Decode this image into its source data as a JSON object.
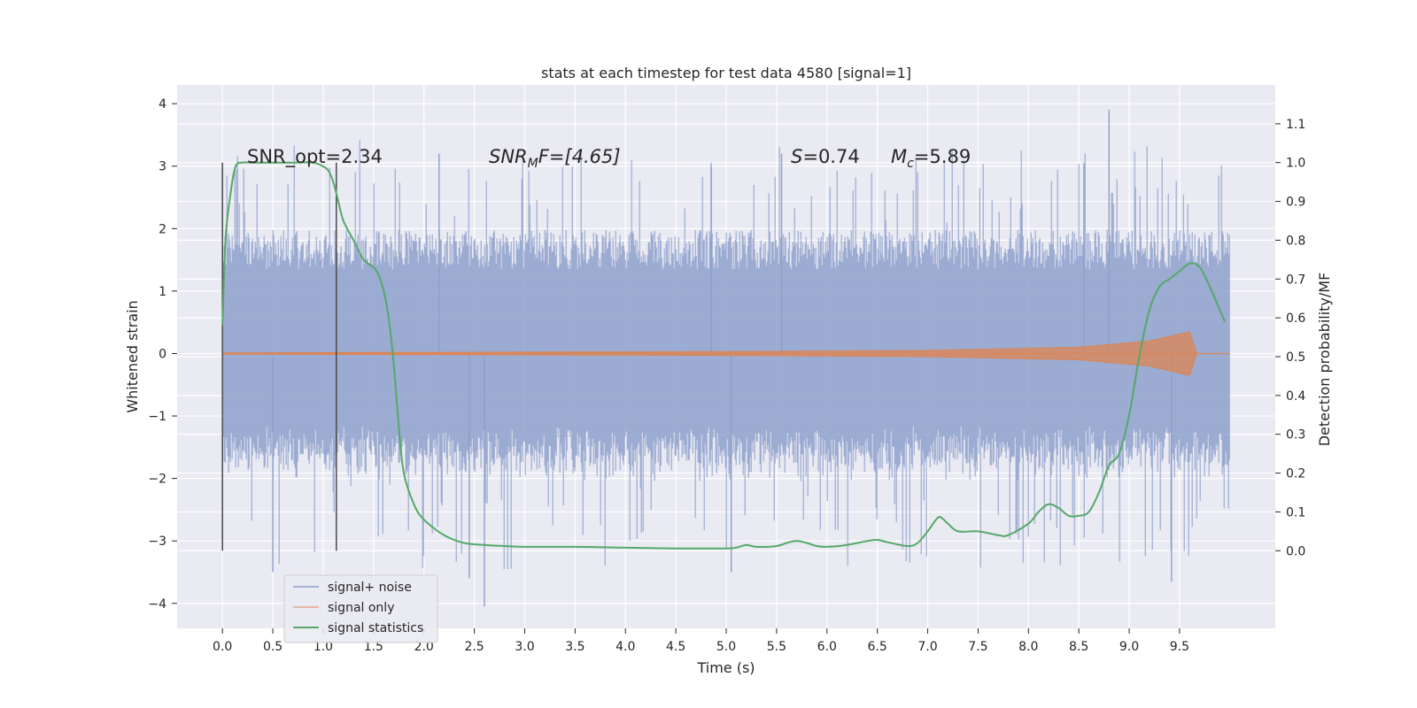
{
  "chart_data": {
    "type": "line",
    "title": "stats at each timestep for test data 4580 [signal=1]",
    "xlabel": "Time (s)",
    "ylabel": "Whitened strain",
    "y2label": "Detection probability/MF",
    "xlim": [
      -0.45,
      10.45
    ],
    "ylim": [
      -4.4,
      4.3
    ],
    "y2lim": [
      -0.2,
      1.2
    ],
    "xticks": [
      "0.0",
      "0.5",
      "1.0",
      "1.5",
      "2.0",
      "2.5",
      "3.0",
      "3.5",
      "4.0",
      "4.5",
      "5.0",
      "5.5",
      "6.0",
      "6.5",
      "7.0",
      "7.5",
      "8.0",
      "8.5",
      "9.0",
      "9.5"
    ],
    "yticks": [
      "4",
      "3",
      "2",
      "1",
      "0",
      "−1",
      "−2",
      "−3",
      "−4"
    ],
    "y2ticks": [
      "1.1",
      "1.0",
      "0.9",
      "0.8",
      "0.7",
      "0.6",
      "0.5",
      "0.4",
      "0.3",
      "0.2",
      "0.1",
      "0.0"
    ],
    "legend": {
      "position": "lower-left",
      "entries": [
        {
          "label": "signal+ noise",
          "color": "#8da0cb"
        },
        {
          "label": "signal only",
          "color": "#e5a58a"
        },
        {
          "label": "signal statistics",
          "color": "#55a868"
        }
      ]
    },
    "annotations": {
      "snr_opt": "SNR_opt=2.34",
      "snr_mf_italic": "SNR",
      "snr_mf_sub": "M",
      "snr_mf_rest": "F=[4.65]",
      "s_symbol": "S",
      "s_value": "=0.74",
      "mc_symbol": "M",
      "mc_sub": "c",
      "mc_value": "=5.89"
    },
    "vertical_markers": [
      0.0,
      1.13
    ],
    "series": [
      {
        "name": "signal+ noise",
        "color": "#8da0cb",
        "duration": 10.0,
        "envelope_typical": 1.8,
        "max": 3.9,
        "min": -4.05
      },
      {
        "name": "signal only",
        "color": "#dd8452",
        "envelope": [
          [
            0.0,
            0.01
          ],
          [
            5.0,
            0.03
          ],
          [
            7.0,
            0.05
          ],
          [
            8.5,
            0.1
          ],
          [
            9.2,
            0.2
          ],
          [
            9.6,
            0.35
          ],
          [
            9.67,
            0.0
          ]
        ]
      },
      {
        "name": "signal statistics",
        "color": "#55a868",
        "x": [
          0.0,
          0.03,
          0.08,
          0.13,
          0.2,
          0.3,
          0.5,
          0.7,
          0.9,
          1.0,
          1.05,
          1.1,
          1.15,
          1.2,
          1.3,
          1.4,
          1.5,
          1.55,
          1.6,
          1.65,
          1.7,
          1.75,
          1.8,
          1.9,
          2.0,
          2.2,
          2.4,
          2.6,
          2.8,
          3.0,
          3.5,
          4.0,
          4.5,
          5.0,
          5.1,
          5.2,
          5.3,
          5.5,
          5.6,
          5.7,
          5.8,
          5.9,
          6.0,
          6.2,
          6.4,
          6.5,
          6.6,
          6.8,
          6.9,
          7.0,
          7.1,
          7.15,
          7.2,
          7.3,
          7.5,
          7.7,
          7.8,
          8.0,
          8.1,
          8.2,
          8.3,
          8.4,
          8.5,
          8.6,
          8.7,
          8.8,
          8.9,
          9.0,
          9.1,
          9.2,
          9.3,
          9.4,
          9.5,
          9.6,
          9.7,
          9.8,
          9.9,
          9.95
        ],
        "values": [
          0.58,
          0.8,
          0.92,
          0.99,
          1.0,
          1.0,
          1.0,
          1.0,
          1.0,
          0.99,
          0.98,
          0.95,
          0.9,
          0.85,
          0.8,
          0.75,
          0.73,
          0.71,
          0.67,
          0.6,
          0.48,
          0.32,
          0.2,
          0.12,
          0.08,
          0.04,
          0.02,
          0.015,
          0.012,
          0.01,
          0.01,
          0.008,
          0.006,
          0.006,
          0.008,
          0.015,
          0.01,
          0.012,
          0.02,
          0.025,
          0.02,
          0.012,
          0.01,
          0.015,
          0.025,
          0.028,
          0.022,
          0.012,
          0.02,
          0.05,
          0.085,
          0.082,
          0.07,
          0.05,
          0.05,
          0.04,
          0.04,
          0.07,
          0.1,
          0.12,
          0.11,
          0.09,
          0.09,
          0.1,
          0.15,
          0.22,
          0.25,
          0.35,
          0.5,
          0.62,
          0.68,
          0.7,
          0.72,
          0.74,
          0.73,
          0.68,
          0.62,
          0.59
        ]
      }
    ]
  }
}
